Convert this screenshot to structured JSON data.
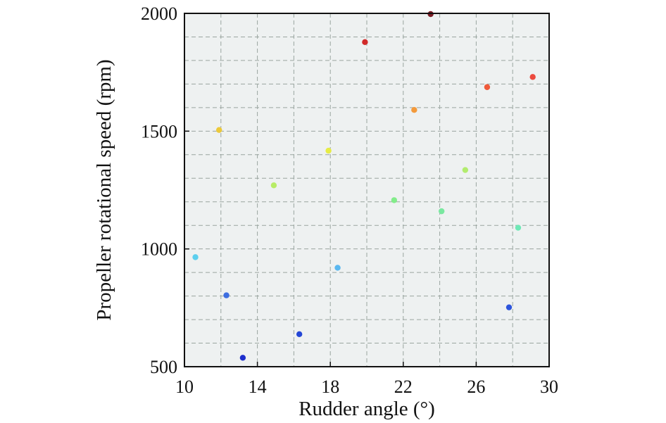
{
  "chart_data": {
    "type": "scatter",
    "xlabel": "Rudder angle (°)",
    "ylabel": "Propeller rotational speed (rpm)",
    "xlim": [
      10,
      30
    ],
    "ylim": [
      500,
      2000
    ],
    "x_ticks": [
      10,
      14,
      18,
      22,
      26,
      30
    ],
    "y_ticks": [
      500,
      1000,
      1500,
      2000
    ],
    "x_minor_grid": [
      12,
      16,
      20,
      24,
      28
    ],
    "y_minor_grid": [
      600,
      700,
      800,
      900,
      1100,
      1200,
      1300,
      1400,
      1600,
      1700,
      1800,
      1900
    ],
    "grid": true,
    "points": [
      {
        "x": 10.6,
        "y": 965,
        "color": "#5ccfee"
      },
      {
        "x": 11.9,
        "y": 1505,
        "color": "#ecc93a"
      },
      {
        "x": 12.3,
        "y": 803,
        "color": "#3d6ee0"
      },
      {
        "x": 13.2,
        "y": 538,
        "color": "#1d2fcc"
      },
      {
        "x": 14.9,
        "y": 1270,
        "color": "#b7ec66"
      },
      {
        "x": 16.3,
        "y": 638,
        "color": "#2447d6"
      },
      {
        "x": 17.9,
        "y": 1417,
        "color": "#e6ec45"
      },
      {
        "x": 18.4,
        "y": 920,
        "color": "#5ab8f0"
      },
      {
        "x": 19.9,
        "y": 1878,
        "color": "#d12a2a"
      },
      {
        "x": 21.5,
        "y": 1207,
        "color": "#82ec8a"
      },
      {
        "x": 22.6,
        "y": 1590,
        "color": "#f39a3c"
      },
      {
        "x": 23.5,
        "y": 1997,
        "color": "#7a1c24"
      },
      {
        "x": 24.1,
        "y": 1160,
        "color": "#7ae8a0"
      },
      {
        "x": 25.4,
        "y": 1335,
        "color": "#b2ec6e"
      },
      {
        "x": 26.6,
        "y": 1687,
        "color": "#ef5a3a"
      },
      {
        "x": 27.8,
        "y": 752,
        "color": "#2d55dc"
      },
      {
        "x": 28.3,
        "y": 1090,
        "color": "#6ee8b6"
      },
      {
        "x": 29.1,
        "y": 1730,
        "color": "#ec4a3e"
      }
    ]
  }
}
